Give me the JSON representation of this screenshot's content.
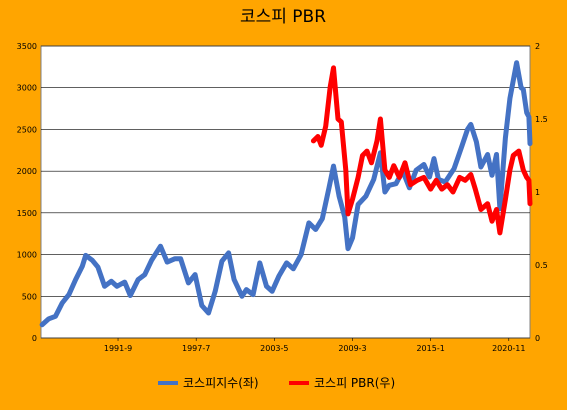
{
  "chart_data": {
    "type": "line",
    "title": "코스피 PBR",
    "x_tick_labels": [
      "1991-9",
      "1997-7",
      "2003-5",
      "2009-3",
      "2015-1",
      "2020-11"
    ],
    "x_range": [
      "1985-12",
      "2022-06"
    ],
    "y_left": {
      "min": 0,
      "max": 3500,
      "ticks": [
        0,
        500,
        1000,
        1500,
        2000,
        2500,
        3000,
        3500
      ]
    },
    "y_right": {
      "min": 0,
      "max": 2,
      "ticks": [
        "0",
        "0.5",
        "1",
        "1.5",
        "2"
      ]
    },
    "grid": true,
    "legend_position": "bottom",
    "series": [
      {
        "name": "코스피지수(좌)",
        "axis": "left",
        "color": "#4472C4",
        "points": [
          [
            "1986-01",
            160
          ],
          [
            "1986-07",
            230
          ],
          [
            "1987-01",
            260
          ],
          [
            "1987-07",
            420
          ],
          [
            "1988-01",
            520
          ],
          [
            "1988-07",
            700
          ],
          [
            "1989-01",
            860
          ],
          [
            "1989-04",
            990
          ],
          [
            "1989-10",
            930
          ],
          [
            "1990-03",
            850
          ],
          [
            "1990-09",
            620
          ],
          [
            "1991-03",
            680
          ],
          [
            "1991-08",
            620
          ],
          [
            "1992-03",
            670
          ],
          [
            "1992-08",
            510
          ],
          [
            "1993-03",
            700
          ],
          [
            "1993-09",
            760
          ],
          [
            "1994-03",
            930
          ],
          [
            "1994-11",
            1100
          ],
          [
            "1995-05",
            910
          ],
          [
            "1995-12",
            950
          ],
          [
            "1996-05",
            950
          ],
          [
            "1996-12",
            660
          ],
          [
            "1997-06",
            760
          ],
          [
            "1997-12",
            390
          ],
          [
            "1998-06",
            300
          ],
          [
            "1998-12",
            560
          ],
          [
            "1999-06",
            920
          ],
          [
            "1999-12",
            1020
          ],
          [
            "2000-05",
            700
          ],
          [
            "2000-12",
            500
          ],
          [
            "2001-04",
            580
          ],
          [
            "2001-10",
            520
          ],
          [
            "2002-04",
            900
          ],
          [
            "2002-10",
            620
          ],
          [
            "2003-03",
            560
          ],
          [
            "2003-09",
            740
          ],
          [
            "2004-04",
            900
          ],
          [
            "2004-10",
            830
          ],
          [
            "2005-05",
            1000
          ],
          [
            "2005-12",
            1380
          ],
          [
            "2006-06",
            1300
          ],
          [
            "2006-12",
            1430
          ],
          [
            "2007-06",
            1800
          ],
          [
            "2007-10",
            2060
          ],
          [
            "2008-03",
            1700
          ],
          [
            "2008-08",
            1450
          ],
          [
            "2008-11",
            1070
          ],
          [
            "2009-03",
            1200
          ],
          [
            "2009-08",
            1600
          ],
          [
            "2010-03",
            1700
          ],
          [
            "2010-10",
            1900
          ],
          [
            "2011-04",
            2220
          ],
          [
            "2011-08",
            1750
          ],
          [
            "2011-12",
            1830
          ],
          [
            "2012-06",
            1850
          ],
          [
            "2012-12",
            2000
          ],
          [
            "2013-06",
            1800
          ],
          [
            "2013-12",
            2010
          ],
          [
            "2014-07",
            2080
          ],
          [
            "2014-12",
            1930
          ],
          [
            "2015-04",
            2150
          ],
          [
            "2015-08",
            1900
          ],
          [
            "2016-02",
            1870
          ],
          [
            "2016-10",
            2030
          ],
          [
            "2017-05",
            2300
          ],
          [
            "2017-10",
            2500
          ],
          [
            "2018-01",
            2560
          ],
          [
            "2018-06",
            2350
          ],
          [
            "2018-10",
            2050
          ],
          [
            "2019-04",
            2200
          ],
          [
            "2019-08",
            1950
          ],
          [
            "2019-12",
            2200
          ],
          [
            "2020-03",
            1550
          ],
          [
            "2020-08",
            2400
          ],
          [
            "2020-12",
            2870
          ],
          [
            "2021-06",
            3300
          ],
          [
            "2021-10",
            3000
          ],
          [
            "2021-12",
            2980
          ],
          [
            "2022-03",
            2700
          ],
          [
            "2022-05",
            2650
          ],
          [
            "2022-06",
            2330
          ]
        ]
      },
      {
        "name": "코스피 PBR(우)",
        "axis": "right",
        "color": "#FF0000",
        "points": [
          [
            "2006-04",
            1.35
          ],
          [
            "2006-08",
            1.38
          ],
          [
            "2006-11",
            1.32
          ],
          [
            "2007-03",
            1.45
          ],
          [
            "2007-07",
            1.72
          ],
          [
            "2007-10",
            1.85
          ],
          [
            "2008-02",
            1.5
          ],
          [
            "2008-05",
            1.48
          ],
          [
            "2008-09",
            1.15
          ],
          [
            "2008-11",
            0.85
          ],
          [
            "2009-03",
            0.95
          ],
          [
            "2009-08",
            1.1
          ],
          [
            "2009-12",
            1.25
          ],
          [
            "2010-04",
            1.28
          ],
          [
            "2010-08",
            1.2
          ],
          [
            "2011-01",
            1.35
          ],
          [
            "2011-04",
            1.5
          ],
          [
            "2011-08",
            1.15
          ],
          [
            "2011-12",
            1.1
          ],
          [
            "2012-04",
            1.18
          ],
          [
            "2012-09",
            1.1
          ],
          [
            "2013-02",
            1.2
          ],
          [
            "2013-07",
            1.05
          ],
          [
            "2014-01",
            1.08
          ],
          [
            "2014-07",
            1.1
          ],
          [
            "2015-01",
            1.02
          ],
          [
            "2015-06",
            1.08
          ],
          [
            "2015-11",
            1.02
          ],
          [
            "2016-04",
            1.05
          ],
          [
            "2016-09",
            1.0
          ],
          [
            "2017-03",
            1.1
          ],
          [
            "2017-08",
            1.08
          ],
          [
            "2018-01",
            1.12
          ],
          [
            "2018-05",
            1.02
          ],
          [
            "2018-10",
            0.88
          ],
          [
            "2019-04",
            0.92
          ],
          [
            "2019-08",
            0.8
          ],
          [
            "2019-12",
            0.88
          ],
          [
            "2020-03",
            0.72
          ],
          [
            "2020-08",
            0.95
          ],
          [
            "2020-12",
            1.15
          ],
          [
            "2021-03",
            1.25
          ],
          [
            "2021-08",
            1.28
          ],
          [
            "2021-12",
            1.15
          ],
          [
            "2022-03",
            1.1
          ],
          [
            "2022-05",
            1.08
          ],
          [
            "2022-06",
            0.92
          ]
        ]
      }
    ]
  }
}
